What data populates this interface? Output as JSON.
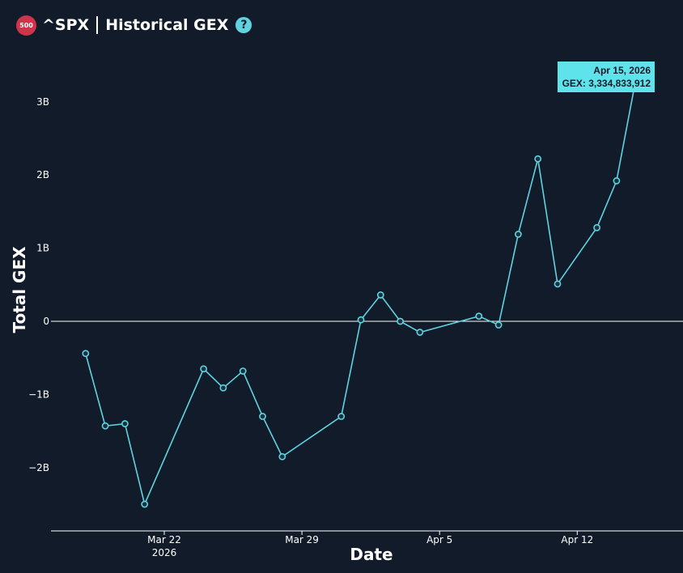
{
  "header": {
    "badge": "500",
    "ticker": "^SPX",
    "title": "Historical GEX",
    "help_icon": "?"
  },
  "tooltip": {
    "date": "Apr 15, 2026",
    "value_text": "GEX: 3,334,833,912"
  },
  "colors": {
    "background": "#111b29",
    "line": "#5fd3e0",
    "badge": "#d0334a"
  },
  "chart_data": {
    "type": "line",
    "xlabel": "Date",
    "ylabel": "Total GEX",
    "ylim": [
      -2.85,
      3.6
    ],
    "y_ticks": [
      {
        "value": 3,
        "label": "3B"
      },
      {
        "value": 2,
        "label": "2B"
      },
      {
        "value": 1,
        "label": "1B"
      },
      {
        "value": 0,
        "label": "0"
      },
      {
        "value": -1,
        "label": "−1B"
      },
      {
        "value": -2,
        "label": "−2B"
      }
    ],
    "x_range": [
      "2026-03-17",
      "2026-04-17"
    ],
    "x_ticks": [
      {
        "date": "2026-03-22",
        "label": "Mar 22",
        "sublabel": "2026"
      },
      {
        "date": "2026-03-29",
        "label": "Mar 29",
        "sublabel": ""
      },
      {
        "date": "2026-04-05",
        "label": "Apr 5",
        "sublabel": ""
      },
      {
        "date": "2026-04-12",
        "label": "Apr 12",
        "sublabel": ""
      }
    ],
    "series": [
      {
        "points": [
          {
            "x": "2026-03-18",
            "y": -0.44
          },
          {
            "x": "2026-03-19",
            "y": -1.43
          },
          {
            "x": "2026-03-20",
            "y": -1.4
          },
          {
            "x": "2026-03-21",
            "y": -2.5
          },
          {
            "x": "2026-03-24",
            "y": -0.65
          },
          {
            "x": "2026-03-25",
            "y": -0.91
          },
          {
            "x": "2026-03-26",
            "y": -0.68
          },
          {
            "x": "2026-03-27",
            "y": -1.3
          },
          {
            "x": "2026-03-28",
            "y": -1.85
          },
          {
            "x": "2026-03-31",
            "y": -1.3
          },
          {
            "x": "2026-04-01",
            "y": 0.02
          },
          {
            "x": "2026-04-02",
            "y": 0.36
          },
          {
            "x": "2026-04-03",
            "y": 0.0
          },
          {
            "x": "2026-04-04",
            "y": -0.15
          },
          {
            "x": "2026-04-07",
            "y": 0.07
          },
          {
            "x": "2026-04-08",
            "y": -0.05
          },
          {
            "x": "2026-04-09",
            "y": 1.19
          },
          {
            "x": "2026-04-10",
            "y": 2.22
          },
          {
            "x": "2026-04-11",
            "y": 0.51
          },
          {
            "x": "2026-04-13",
            "y": 1.28
          },
          {
            "x": "2026-04-14",
            "y": 1.92
          },
          {
            "x": "2026-04-15",
            "y": 3.334833912
          }
        ]
      }
    ]
  }
}
